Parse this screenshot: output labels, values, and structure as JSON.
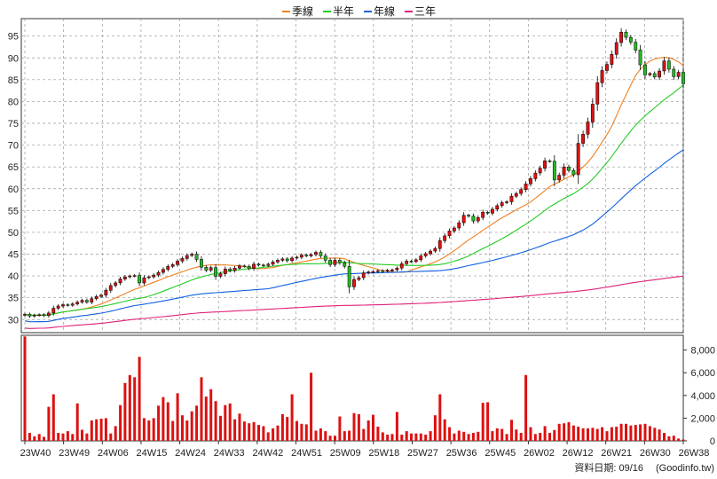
{
  "legend": [
    {
      "label": "季線",
      "color": "#f08020"
    },
    {
      "label": "半年",
      "color": "#22cc22"
    },
    {
      "label": "年線",
      "color": "#1060e0"
    },
    {
      "label": "三年",
      "color": "#e0207a"
    }
  ],
  "footer": {
    "date_label": "資料日期: 09/16",
    "source_label": "(Goodinfo.tw)"
  },
  "colors": {
    "up": "#dd1111",
    "down": "#22bb22",
    "volume": "#dd1111",
    "grid": "#999999"
  },
  "chart_data": [
    {
      "type": "candlestick",
      "title": "",
      "ylim": [
        27,
        99
      ],
      "y_ticks": [
        30,
        35,
        40,
        45,
        50,
        55,
        60,
        65,
        70,
        75,
        80,
        85,
        90,
        95
      ],
      "grid": true,
      "legend_position": "top-center",
      "x_tick_labels": [
        "23W40",
        "23W49",
        "24W06",
        "24W15",
        "24W24",
        "24W33",
        "24W42",
        "24W51",
        "25W09",
        "25W18",
        "25W27",
        "25W36",
        "25W45",
        "26W02",
        "26W12",
        "26W21",
        "26W30",
        "26W38"
      ],
      "close": [
        31.2,
        30.8,
        31.0,
        31.1,
        30.9,
        31.5,
        32.6,
        33.1,
        33.4,
        33.3,
        33.6,
        34.0,
        34.4,
        34.0,
        34.8,
        35.3,
        35.6,
        36.7,
        37.8,
        38.4,
        39.3,
        39.8,
        40.0,
        40.1,
        38.4,
        39.6,
        39.8,
        40.2,
        40.8,
        41.5,
        42.2,
        42.6,
        43.4,
        44.0,
        44.7,
        45.0,
        43.8,
        42.0,
        41.3,
        41.9,
        39.9,
        40.5,
        41.6,
        41.2,
        41.8,
        42.3,
        42.2,
        41.7,
        42.7,
        42.5,
        42.4,
        42.7,
        43.2,
        43.6,
        43.9,
        43.5,
        44.1,
        44.3,
        44.8,
        44.6,
        44.9,
        45.4,
        44.6,
        43.6,
        42.6,
        43.6,
        43.0,
        42.2,
        37.5,
        39.2,
        39.6,
        40.7,
        40.9,
        41.0,
        41.2,
        41.1,
        41.3,
        41.4,
        41.8,
        42.8,
        43.4,
        43.3,
        43.7,
        44.6,
        45.1,
        45.7,
        46.3,
        48.1,
        49.2,
        50.3,
        51.0,
        52.2,
        53.9,
        53.7,
        52.6,
        53.4,
        54.6,
        54.4,
        55.3,
        56.1,
        56.8,
        57.0,
        58.3,
        58.9,
        59.8,
        61.1,
        62.3,
        63.6,
        64.7,
        66.4,
        66.3,
        62.0,
        63.1,
        65.0,
        64.2,
        63.2,
        70.4,
        72.5,
        75.3,
        79.4,
        84.3,
        87.1,
        88.5,
        90.8,
        93.5,
        95.9,
        94.7,
        93.6,
        91.8,
        88.4,
        86.1,
        86.4,
        85.6,
        87.0,
        89.3,
        87.4,
        85.7,
        86.7,
        84.1
      ]
    },
    {
      "type": "bar",
      "title": "",
      "ylim": [
        0,
        9300
      ],
      "y_ticks": [
        0,
        2000,
        4000,
        6000,
        8000
      ],
      "grid": false,
      "values": [
        9200,
        700,
        400,
        600,
        350,
        3000,
        4100,
        700,
        650,
        850,
        600,
        3300,
        980,
        650,
        1800,
        1900,
        1950,
        2000,
        650,
        1300,
        3150,
        5100,
        5800,
        5600,
        7400,
        2000,
        1800,
        2000,
        3100,
        3850,
        3400,
        1750,
        4200,
        2250,
        1800,
        2600,
        3100,
        5600,
        3900,
        4550,
        3500,
        2200,
        3150,
        3300,
        1900,
        2400,
        1700,
        1550,
        1650,
        1400,
        1300,
        750,
        1100,
        1350,
        2350,
        2100,
        4100,
        1750,
        1500,
        1450,
        6000,
        900,
        1100,
        850,
        450,
        450,
        2150,
        850,
        900,
        2450,
        2350,
        1050,
        1800,
        2300,
        1250,
        750,
        550,
        600,
        2550,
        550,
        850,
        650,
        650,
        650,
        550,
        850,
        2250,
        4100,
        1900,
        1200,
        650,
        900,
        800,
        600,
        700,
        800,
        3350,
        3400,
        850,
        1100,
        1050,
        600,
        1850,
        1000,
        700,
        5800,
        1200,
        600,
        700,
        1300,
        700,
        950,
        1500,
        1550,
        1650,
        1350,
        1250,
        1100,
        1100,
        1150,
        1050,
        1200,
        850,
        1200,
        1250,
        1500,
        1500,
        1350,
        1400,
        1450,
        1500,
        1300,
        1150,
        1000,
        700,
        400,
        450,
        200,
        120
      ]
    }
  ]
}
